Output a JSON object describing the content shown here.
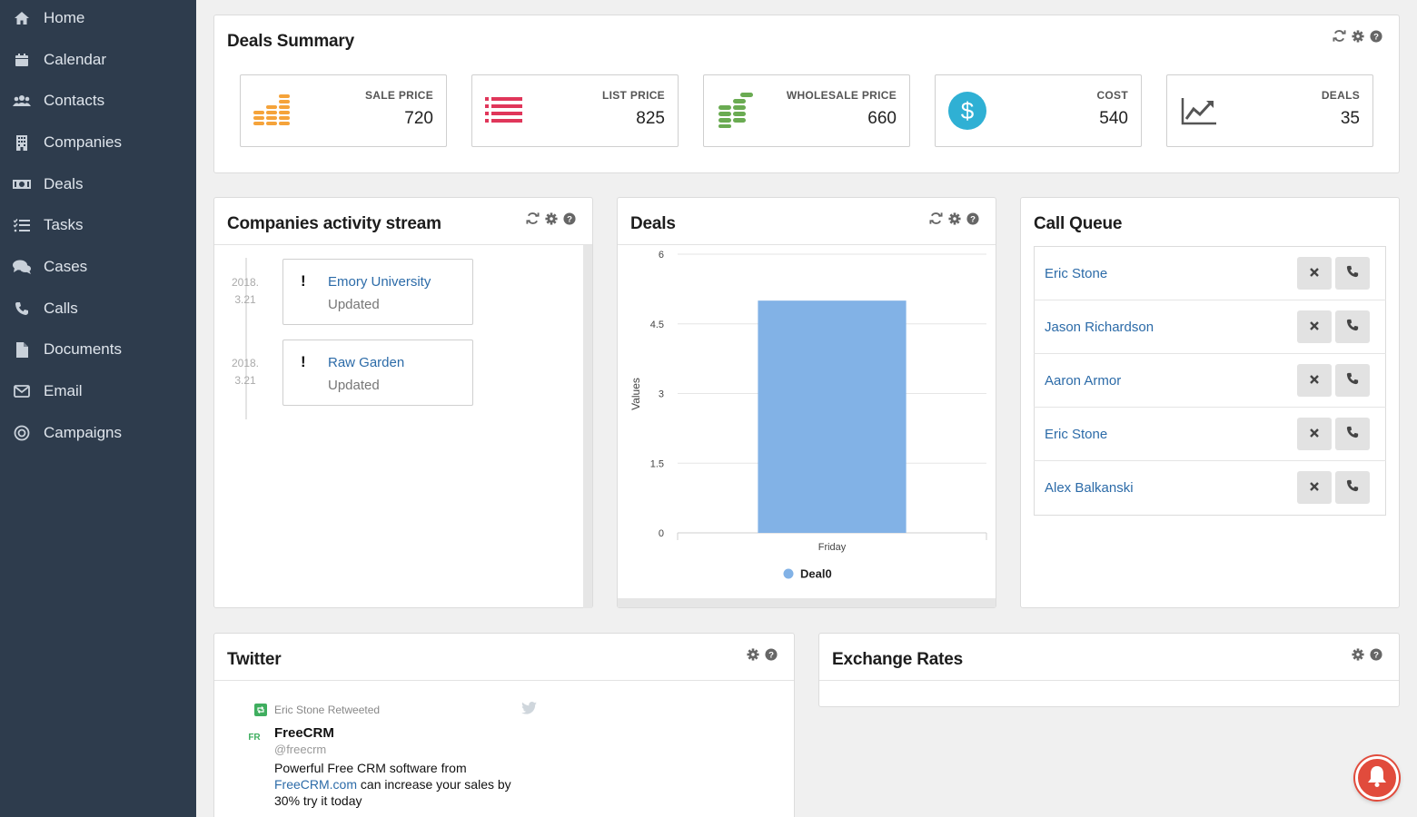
{
  "sidebar": {
    "items": [
      {
        "label": "Home",
        "icon": "home-icon"
      },
      {
        "label": "Calendar",
        "icon": "calendar-icon"
      },
      {
        "label": "Contacts",
        "icon": "users-icon"
      },
      {
        "label": "Companies",
        "icon": "building-icon"
      },
      {
        "label": "Deals",
        "icon": "money-icon"
      },
      {
        "label": "Tasks",
        "icon": "tasks-icon"
      },
      {
        "label": "Cases",
        "icon": "comments-icon"
      },
      {
        "label": "Calls",
        "icon": "phone-icon"
      },
      {
        "label": "Documents",
        "icon": "document-icon"
      },
      {
        "label": "Email",
        "icon": "envelope-icon"
      },
      {
        "label": "Campaigns",
        "icon": "target-icon"
      }
    ]
  },
  "deals_summary": {
    "title": "Deals Summary",
    "cards": [
      {
        "label": "SALE PRICE",
        "value": "720",
        "icon": "coins-icon",
        "color": "#f5a33a"
      },
      {
        "label": "LIST PRICE",
        "value": "825",
        "icon": "list-icon",
        "color": "#e0365a"
      },
      {
        "label": "WHOLESALE PRICE",
        "value": "660",
        "icon": "coins-icon",
        "color": "#6aab52"
      },
      {
        "label": "COST",
        "value": "540",
        "icon": "dollar-circle-icon",
        "color": "#2fb0d4"
      },
      {
        "label": "DEALS",
        "value": "35",
        "icon": "line-chart-icon",
        "color": "#555555"
      }
    ]
  },
  "activity": {
    "title": "Companies activity stream",
    "items": [
      {
        "date_line1": "2018.",
        "date_line2": "3.21",
        "name": "Emory University",
        "status": "Updated"
      },
      {
        "date_line1": "2018.",
        "date_line2": "3.21",
        "name": "Raw Garden",
        "status": "Updated"
      }
    ]
  },
  "deals_chart": {
    "title": "Deals"
  },
  "chart_data": {
    "type": "bar",
    "categories": [
      "Friday"
    ],
    "series": [
      {
        "name": "Deal0",
        "values": [
          5
        ]
      }
    ],
    "ylabel": "Values",
    "xlabel": "",
    "ylim": [
      0,
      6
    ],
    "yticks": [
      "0",
      "1.5",
      "3",
      "4.5",
      "6"
    ],
    "grid": true,
    "legend": "bottom",
    "color": "#82b2e6"
  },
  "call_queue": {
    "title": "Call Queue",
    "items": [
      "Eric Stone",
      "Jason Richardson",
      "Aaron Armor",
      "Eric Stone",
      "Alex Balkanski"
    ]
  },
  "twitter": {
    "title": "Twitter",
    "retweet_text": "Eric Stone Retweeted",
    "name": "FreeCRM",
    "handle": "@freecrm",
    "text_before": "Powerful Free CRM software from",
    "link": "FreeCRM.com",
    "text_after": "can increase your sales by",
    "text_line3": "30% try it today",
    "avatar_text": "FR"
  },
  "exchange_rates": {
    "title": "Exchange Rates"
  },
  "colors": {
    "sidebar": "#2e3c4d",
    "link": "#2c6ba8",
    "bell": "#e14b3c"
  }
}
